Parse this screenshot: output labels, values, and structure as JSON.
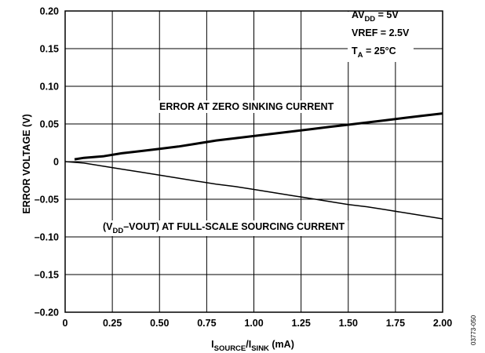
{
  "chart_data": {
    "type": "line",
    "xlabel": {
      "main1": "I",
      "sub1": "SOURCE",
      "sep": "/I",
      "sub2": "SINK",
      "unit": " (mA)"
    },
    "ylabel": "ERROR VOLTAGE (V)",
    "xlim": [
      0,
      2.0
    ],
    "ylim": [
      -0.2,
      0.2
    ],
    "x_ticks": [
      "0",
      "0.25",
      "0.50",
      "0.75",
      "1.00",
      "1.25",
      "1.50",
      "1.75",
      "2.00"
    ],
    "y_ticks": [
      "0.20",
      "0.15",
      "0.10",
      "0.05",
      "0",
      "–0.05",
      "–0.10",
      "–0.15",
      "–0.20"
    ],
    "grid": true,
    "series": [
      {
        "name": "ERROR AT ZERO SINKING CURRENT",
        "color": "#000000",
        "x": [
          0.05,
          0.1,
          0.2,
          0.3,
          0.4,
          0.5,
          0.6,
          0.7,
          0.8,
          0.9,
          1.0,
          1.1,
          1.2,
          1.3,
          1.4,
          1.5,
          1.6,
          1.7,
          1.8,
          1.9,
          2.0
        ],
        "y": [
          0.003,
          0.005,
          0.007,
          0.011,
          0.014,
          0.017,
          0.02,
          0.024,
          0.028,
          0.031,
          0.034,
          0.037,
          0.04,
          0.043,
          0.046,
          0.049,
          0.052,
          0.055,
          0.058,
          0.061,
          0.064
        ]
      },
      {
        "name_parts": {
          "open": "(V",
          "sub": "DD",
          "rest": "–VOUT) AT FULL-SCALE SOURCING CURRENT"
        },
        "color": "#000000",
        "x": [
          0.0,
          0.1,
          0.2,
          0.3,
          0.4,
          0.5,
          0.6,
          0.7,
          0.8,
          0.9,
          1.0,
          1.1,
          1.2,
          1.3,
          1.4,
          1.5,
          1.6,
          1.7,
          1.8,
          1.9,
          2.0
        ],
        "y": [
          0.0,
          -0.002,
          -0.006,
          -0.01,
          -0.014,
          -0.018,
          -0.022,
          -0.026,
          -0.03,
          -0.033,
          -0.037,
          -0.041,
          -0.045,
          -0.049,
          -0.053,
          -0.057,
          -0.06,
          -0.064,
          -0.068,
          -0.072,
          -0.076
        ]
      }
    ],
    "conditions": [
      {
        "main": "AV",
        "sub": "DD",
        "rest": " = 5V"
      },
      {
        "main": "VREF = 2.5V",
        "sub": "",
        "rest": ""
      },
      {
        "main": "T",
        "sub": "A",
        "rest": " = 25°C"
      }
    ]
  },
  "figure_id": "03773-050"
}
